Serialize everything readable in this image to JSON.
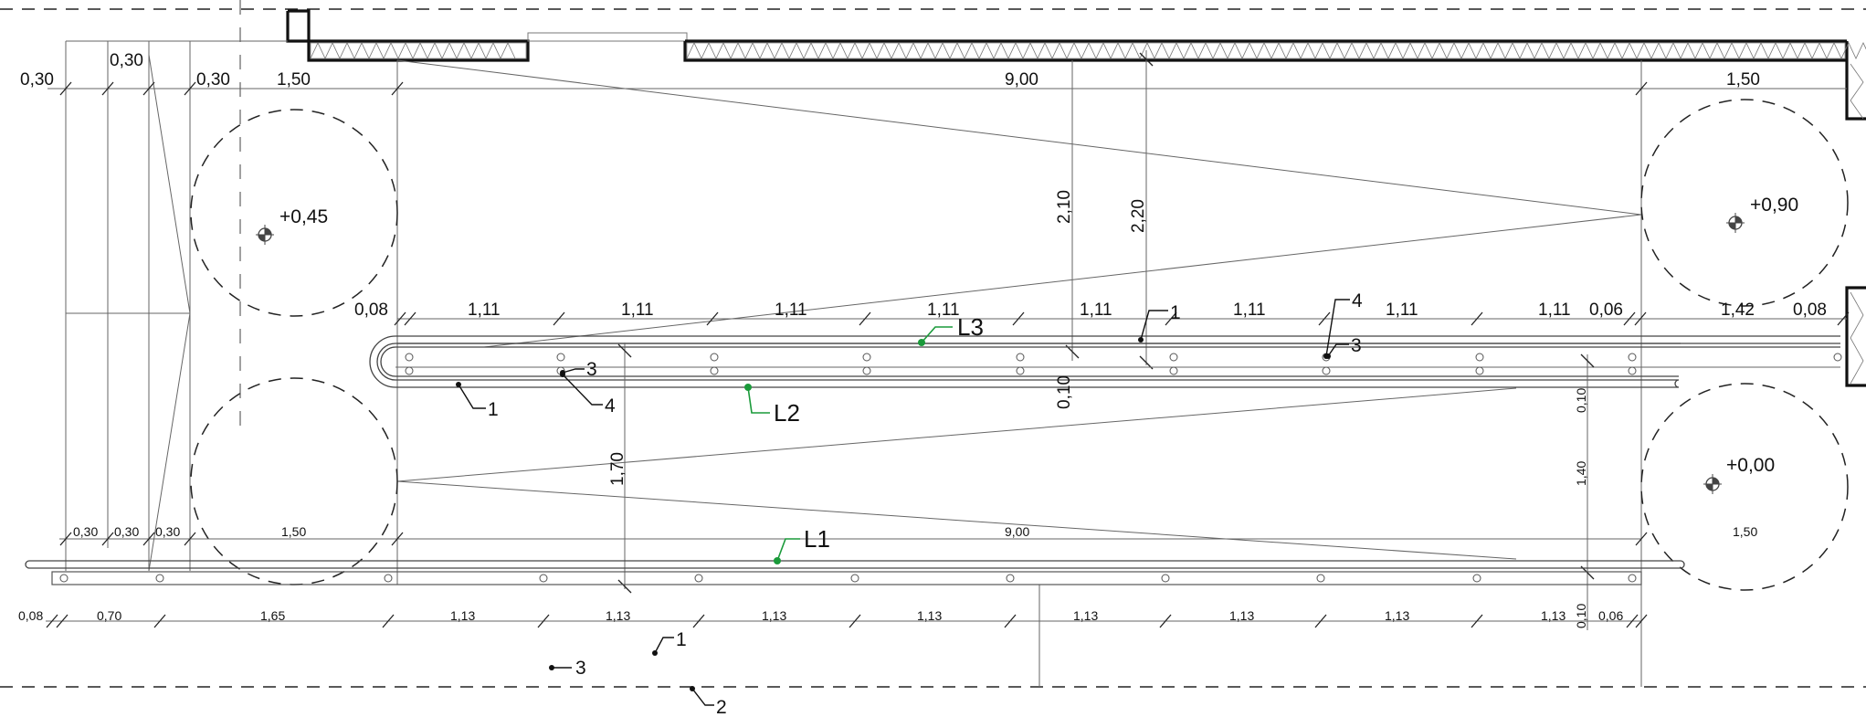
{
  "dims_top": {
    "w030a": "0,30",
    "w030b": "0,30",
    "w030c": "0,30",
    "w150l": "1,50",
    "w900": "9,00",
    "w150r": "1,50",
    "h210": "2,10",
    "h220": "2,20"
  },
  "dims_mid": [
    "1,11",
    "1,11",
    "1,11",
    "1,11",
    "1,11",
    "1,11",
    "1,11",
    "1,11"
  ],
  "dims_mid_extra": {
    "start": "0,08",
    "end_a": "0,06",
    "end_b": "1,42",
    "end_c": "0,08"
  },
  "dims_vert": {
    "h010a": "0,10",
    "h170": "1,70",
    "h010b": "0,10",
    "h140": "1,40",
    "h010c": "0,10"
  },
  "dims_low": {
    "a": "0,30",
    "b": "0,30",
    "c": "0,30",
    "d": "1,50",
    "e": "9,00",
    "f": "1,50"
  },
  "dims_bottom": {
    "first": [
      "0,08",
      "0,70",
      "1,65"
    ],
    "spans": [
      "1,13",
      "1,13",
      "1,13",
      "1,13",
      "1,13",
      "1,13",
      "1,13",
      "1,13"
    ],
    "last": "0,06"
  },
  "elevations": {
    "e045": "+0,45",
    "e090": "+0,90",
    "e000": "+0,00"
  },
  "bar_lines": {
    "l1": "L1",
    "l2": "L2",
    "l3": "L3"
  },
  "position_marks": {
    "p1": "1",
    "p2": "2",
    "p3": "3",
    "p4": "4"
  },
  "colors": {
    "line": "#444444",
    "bars_label": "#1a9a3a"
  }
}
